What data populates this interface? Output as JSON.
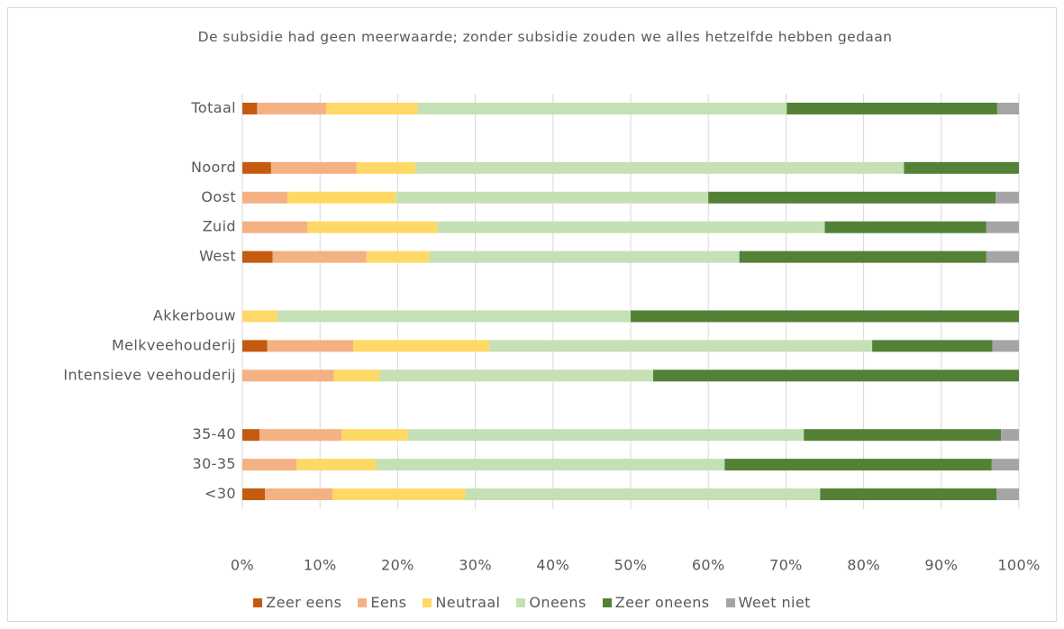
{
  "chart_data": {
    "type": "stacked_bar_horizontal",
    "title": "De subsidie had geen meerwaarde;  zonder subsidie zouden we alles hetzelfde hebben gedaan",
    "categories": [
      "Totaal",
      null,
      "Noord",
      "Oost",
      "Zuid",
      "West",
      null,
      "Akkerbouw",
      "Melkveehouderij",
      "Intensieve veehouderij",
      null,
      "35-40",
      "30-35",
      "<30"
    ],
    "series": [
      {
        "name": "Zeer eens",
        "color": "#c55a11",
        "values": [
          1.9,
          null,
          3.7,
          0,
          0,
          3.9,
          null,
          0,
          3.2,
          0,
          null,
          2.2,
          0,
          2.9
        ]
      },
      {
        "name": "Eens",
        "color": "#f4b183",
        "values": [
          8.9,
          null,
          11.0,
          5.8,
          8.4,
          12.1,
          null,
          0,
          11.1,
          11.8,
          null,
          10.6,
          7.0,
          8.7
        ]
      },
      {
        "name": "Neutraal",
        "color": "#ffd966",
        "values": [
          11.8,
          null,
          7.6,
          14.0,
          16.7,
          8.1,
          null,
          4.5,
          17.5,
          5.9,
          null,
          8.5,
          10.2,
          17.1
        ]
      },
      {
        "name": "Oneens",
        "color": "#c5e0b4",
        "values": [
          47.5,
          null,
          62.9,
          40.2,
          49.9,
          39.9,
          null,
          45.5,
          49.3,
          35.2,
          null,
          51.0,
          44.9,
          45.7
        ]
      },
      {
        "name": "Zeer oneens",
        "color": "#538135",
        "values": [
          27.1,
          null,
          14.8,
          37.0,
          20.8,
          31.8,
          null,
          50.0,
          15.5,
          47.1,
          null,
          25.4,
          34.4,
          22.7
        ]
      },
      {
        "name": "Weet niet",
        "color": "#a5a5a5",
        "values": [
          2.8,
          null,
          0,
          3.0,
          4.2,
          4.2,
          null,
          0,
          3.4,
          0,
          null,
          2.3,
          3.5,
          2.9
        ]
      }
    ],
    "xlim": [
      0,
      100
    ],
    "xticks": [
      {
        "value": 0,
        "label": "0%"
      },
      {
        "value": 10,
        "label": "10%"
      },
      {
        "value": 20,
        "label": "20%"
      },
      {
        "value": 30,
        "label": "30%"
      },
      {
        "value": 40,
        "label": "40%"
      },
      {
        "value": 50,
        "label": "50%"
      },
      {
        "value": 60,
        "label": "60%"
      },
      {
        "value": 70,
        "label": "70%"
      },
      {
        "value": 80,
        "label": "80%"
      },
      {
        "value": 90,
        "label": "90%"
      },
      {
        "value": 100,
        "label": "100%"
      }
    ],
    "grid": true,
    "legend": "bottom"
  }
}
